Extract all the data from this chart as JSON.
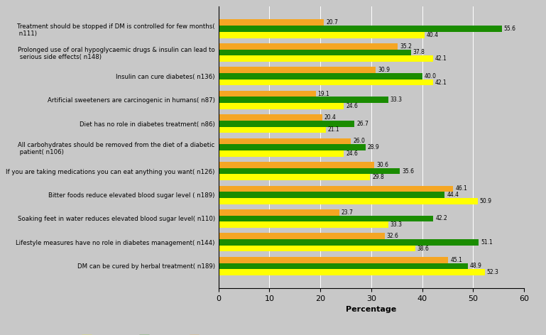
{
  "categories": [
    "Treatment should be stopped if DM is controlled for few months(\n n111)",
    "Prolonged use of oral hypoglycaemic drugs & insulin can lead to\n serious side effects( n148)",
    "Insulin can cure diabetes( n136)",
    "Artificial sweeteners are carcinogenic in humans( n87)",
    "Diet has no role in diabetes treatment( n86)",
    "All carbohydrates should be removed from the diet of a diabetic\n patient( n106)",
    "If you are taking medications you can eat anything you want( n126)",
    "Bitter foods reduce elevated blood sugar level ( n189)",
    "Soaking feet in water reduces elevated blood sugar level( n110)",
    "Lifestyle measures have no role in diabetes management( n144)",
    "DM can be cured by herbal treatment( n189)"
  ],
  "christian": [
    40.4,
    42.1,
    42.1,
    24.6,
    21.1,
    24.6,
    29.8,
    50.9,
    33.3,
    38.6,
    52.3
  ],
  "muslim": [
    55.6,
    37.8,
    40.0,
    33.3,
    26.7,
    28.9,
    35.6,
    44.4,
    42.2,
    51.1,
    48.9
  ],
  "hindu": [
    20.7,
    35.2,
    30.9,
    19.1,
    20.4,
    26.0,
    30.6,
    46.1,
    23.7,
    32.6,
    45.1
  ],
  "colors": {
    "Christian": "#ffff00",
    "Muslim": "#1a8c00",
    "Hindu": "#f5a623"
  },
  "xlabel": "Percentage",
  "xlim": [
    0,
    60
  ],
  "xticks": [
    0,
    10,
    20,
    30,
    40,
    50,
    60
  ],
  "background_color": "#c8c8c8",
  "bar_height": 0.26,
  "fontsize_labels": 6.2,
  "fontsize_values": 5.5,
  "fontsize_axis": 8,
  "fontsize_legend": 8
}
